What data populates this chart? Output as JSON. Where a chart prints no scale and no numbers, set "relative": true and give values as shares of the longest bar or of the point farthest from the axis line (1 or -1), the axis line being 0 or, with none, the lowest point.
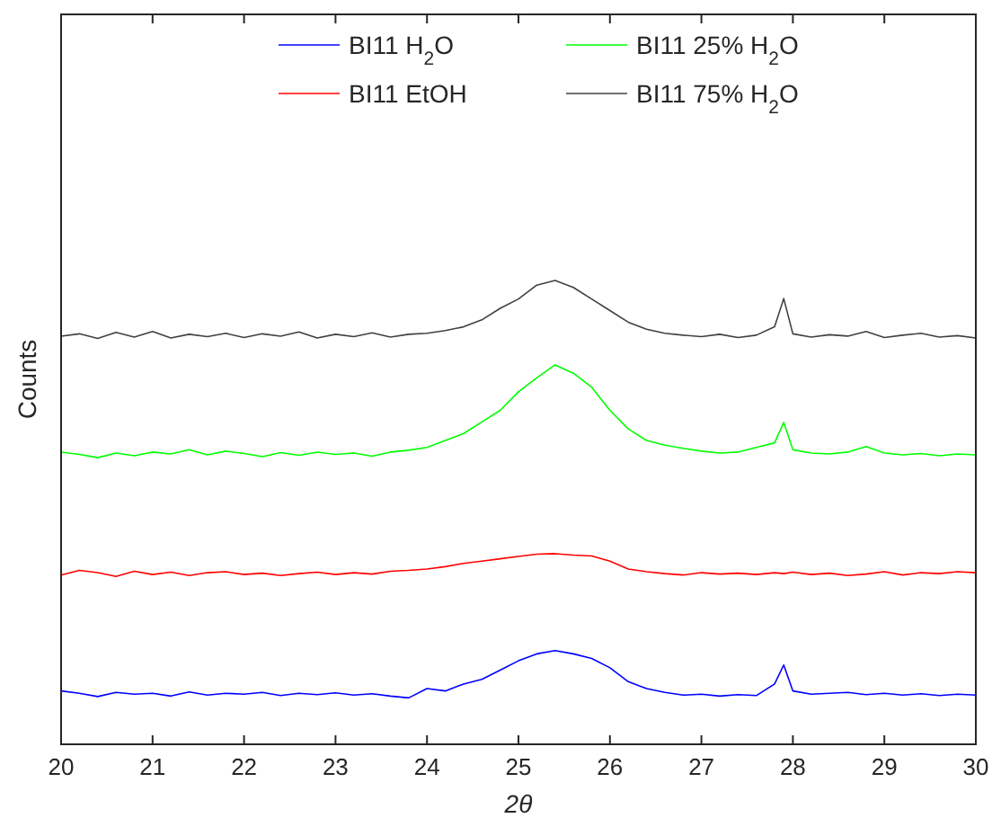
{
  "chart_data": {
    "type": "line",
    "relative": true,
    "xlabel": "2θ",
    "ylabel": "Counts",
    "xlim": [
      20,
      30
    ],
    "xticks": [
      20,
      21,
      22,
      23,
      24,
      25,
      26,
      27,
      28,
      29,
      30
    ],
    "legend": "top",
    "grid": false,
    "x": [
      20,
      20.2,
      20.4,
      20.6,
      20.8,
      21,
      21.2,
      21.4,
      21.6,
      21.8,
      22,
      22.2,
      22.4,
      22.6,
      22.8,
      23,
      23.2,
      23.4,
      23.6,
      23.8,
      24,
      24.2,
      24.4,
      24.6,
      24.8,
      25,
      25.2,
      25.4,
      25.6,
      25.8,
      26,
      26.2,
      26.4,
      26.6,
      26.8,
      27,
      27.2,
      27.4,
      27.6,
      27.8,
      27.9,
      28,
      28.2,
      28.4,
      28.6,
      28.8,
      29,
      29.2,
      29.4,
      29.6,
      29.8,
      30
    ],
    "series": [
      {
        "name": "BI11 H$_{2}$O",
        "color": "#0000ff",
        "values": [
          0.115,
          0.11,
          0.103,
          0.112,
          0.108,
          0.11,
          0.104,
          0.113,
          0.106,
          0.11,
          0.108,
          0.112,
          0.105,
          0.11,
          0.107,
          0.111,
          0.106,
          0.109,
          0.104,
          0.1,
          0.12,
          0.115,
          0.13,
          0.14,
          0.16,
          0.18,
          0.195,
          0.202,
          0.195,
          0.185,
          0.165,
          0.135,
          0.12,
          0.112,
          0.106,
          0.108,
          0.104,
          0.107,
          0.105,
          0.13,
          0.171,
          0.115,
          0.108,
          0.11,
          0.112,
          0.107,
          0.11,
          0.106,
          0.109,
          0.105,
          0.108,
          0.106
        ]
      },
      {
        "name": "BI11 25% H$_{2}$O",
        "color": "#00ff00",
        "values": [
          0.63,
          0.625,
          0.618,
          0.628,
          0.622,
          0.63,
          0.626,
          0.635,
          0.624,
          0.632,
          0.627,
          0.62,
          0.629,
          0.623,
          0.63,
          0.625,
          0.628,
          0.621,
          0.63,
          0.634,
          0.64,
          0.655,
          0.67,
          0.695,
          0.72,
          0.76,
          0.79,
          0.818,
          0.8,
          0.77,
          0.72,
          0.68,
          0.655,
          0.645,
          0.638,
          0.632,
          0.628,
          0.63,
          0.64,
          0.65,
          0.694,
          0.635,
          0.628,
          0.626,
          0.63,
          0.642,
          0.628,
          0.624,
          0.627,
          0.622,
          0.626,
          0.624
        ]
      },
      {
        "name": "BI11 EtOH",
        "color": "#ff0000",
        "values": [
          0.365,
          0.375,
          0.37,
          0.362,
          0.373,
          0.366,
          0.371,
          0.364,
          0.37,
          0.372,
          0.366,
          0.369,
          0.364,
          0.368,
          0.371,
          0.366,
          0.37,
          0.367,
          0.373,
          0.375,
          0.378,
          0.383,
          0.39,
          0.395,
          0.4,
          0.405,
          0.41,
          0.411,
          0.408,
          0.406,
          0.395,
          0.378,
          0.372,
          0.368,
          0.365,
          0.37,
          0.367,
          0.369,
          0.366,
          0.37,
          0.368,
          0.371,
          0.366,
          0.369,
          0.364,
          0.367,
          0.372,
          0.365,
          0.37,
          0.368,
          0.372,
          0.37
        ]
      },
      {
        "name": "BI11 75% H$_{2}$O",
        "color": "#404040",
        "values": [
          0.88,
          0.885,
          0.875,
          0.888,
          0.878,
          0.89,
          0.876,
          0.884,
          0.879,
          0.886,
          0.877,
          0.885,
          0.88,
          0.889,
          0.876,
          0.884,
          0.879,
          0.887,
          0.878,
          0.884,
          0.886,
          0.892,
          0.9,
          0.915,
          0.94,
          0.96,
          0.99,
          1,
          0.985,
          0.96,
          0.935,
          0.91,
          0.895,
          0.886,
          0.882,
          0.879,
          0.884,
          0.877,
          0.882,
          0.9,
          0.961,
          0.885,
          0.878,
          0.883,
          0.88,
          0.89,
          0.877,
          0.882,
          0.886,
          0.878,
          0.881,
          0.876
        ]
      }
    ]
  }
}
